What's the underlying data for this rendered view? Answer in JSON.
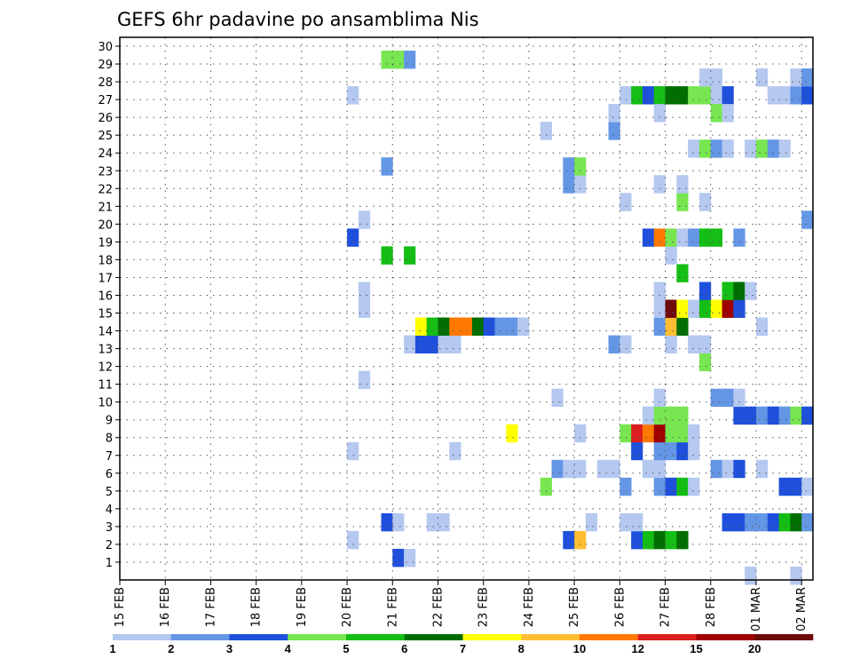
{
  "chart_data": {
    "type": "heatmap",
    "title": "GEFS 6hr padavine po ansamblima Nis",
    "xlabel": "",
    "ylabel": "",
    "x_tick_labels": [
      "15 FEB",
      "16 FEB",
      "17 FEB",
      "18 FEB",
      "19 FEB",
      "20 FEB",
      "21 FEB",
      "22 FEB",
      "23 FEB",
      "24 FEB",
      "25 FEB",
      "26 FEB",
      "27 FEB",
      "28 FEB",
      "01 MAR",
      "02 MAR"
    ],
    "y_tick_labels": [
      "1",
      "2",
      "3",
      "4",
      "5",
      "6",
      "7",
      "8",
      "9",
      "10",
      "11",
      "12",
      "13",
      "14",
      "15",
      "16",
      "17",
      "18",
      "19",
      "20",
      "21",
      "22",
      "23",
      "24",
      "25",
      "26",
      "27",
      "28",
      "29",
      "30"
    ],
    "x_unit": "6-hour step from 15 FEB 00Z",
    "ylim": [
      0,
      30
    ],
    "grid": true,
    "colorbar": {
      "labels": [
        "1",
        "2",
        "3",
        "4",
        "5",
        "6",
        "7",
        "8",
        "10",
        "12",
        "15",
        "20"
      ],
      "colors": [
        "#b4c8f0",
        "#6496e6",
        "#1e50dc",
        "#78e650",
        "#14be14",
        "#006e00",
        "#ffff00",
        "#ffbe32",
        "#ff7800",
        "#dc1e1e",
        "#a00000",
        "#6e0a0a"
      ]
    },
    "cells": [
      [
        24,
        1,
        3
      ],
      [
        25,
        1,
        1
      ],
      [
        27,
        3,
        1
      ],
      [
        28,
        3,
        1
      ],
      [
        20,
        2,
        1
      ],
      [
        39,
        2,
        3
      ],
      [
        40,
        2,
        8
      ],
      [
        45,
        2,
        3
      ],
      [
        46,
        2,
        5
      ],
      [
        47,
        2,
        6
      ],
      [
        48,
        2,
        5
      ],
      [
        49,
        2,
        6
      ],
      [
        23,
        3,
        3
      ],
      [
        24,
        3,
        1
      ],
      [
        41,
        3,
        1
      ],
      [
        44,
        3,
        1
      ],
      [
        45,
        3,
        1
      ],
      [
        53,
        3,
        3
      ],
      [
        54,
        3,
        3
      ],
      [
        55,
        3,
        2
      ],
      [
        56,
        3,
        2
      ],
      [
        57,
        3,
        3
      ],
      [
        58,
        3,
        5
      ],
      [
        59,
        3,
        6
      ],
      [
        60,
        3,
        2
      ],
      [
        37,
        5,
        4
      ],
      [
        44,
        5,
        2
      ],
      [
        47,
        5,
        2
      ],
      [
        48,
        5,
        3
      ],
      [
        49,
        5,
        5
      ],
      [
        50,
        5,
        1
      ],
      [
        58,
        5,
        3
      ],
      [
        59,
        5,
        3
      ],
      [
        60,
        5,
        1
      ],
      [
        38,
        6,
        2
      ],
      [
        39,
        6,
        1
      ],
      [
        40,
        6,
        1
      ],
      [
        42,
        6,
        1
      ],
      [
        43,
        6,
        1
      ],
      [
        46,
        6,
        1
      ],
      [
        47,
        6,
        1
      ],
      [
        52,
        6,
        2
      ],
      [
        53,
        6,
        1
      ],
      [
        54,
        6,
        3
      ],
      [
        56,
        6,
        1
      ],
      [
        20,
        7,
        1
      ],
      [
        29,
        7,
        1
      ],
      [
        45,
        7,
        3
      ],
      [
        47,
        7,
        2
      ],
      [
        48,
        7,
        2
      ],
      [
        49,
        7,
        3
      ],
      [
        50,
        7,
        1
      ],
      [
        34,
        8,
        7
      ],
      [
        40,
        8,
        1
      ],
      [
        44,
        8,
        4
      ],
      [
        45,
        8,
        10
      ],
      [
        46,
        8,
        9
      ],
      [
        47,
        8,
        11
      ],
      [
        48,
        8,
        4
      ],
      [
        49,
        8,
        4
      ],
      [
        50,
        8,
        1
      ],
      [
        46,
        9,
        1
      ],
      [
        47,
        9,
        4
      ],
      [
        48,
        9,
        4
      ],
      [
        49,
        9,
        4
      ],
      [
        54,
        9,
        3
      ],
      [
        55,
        9,
        3
      ],
      [
        56,
        9,
        2
      ],
      [
        57,
        9,
        3
      ],
      [
        58,
        9,
        2
      ],
      [
        59,
        9,
        4
      ],
      [
        60,
        9,
        3
      ],
      [
        38,
        10,
        1
      ],
      [
        47,
        10,
        1
      ],
      [
        52,
        10,
        2
      ],
      [
        53,
        10,
        2
      ],
      [
        54,
        10,
        1
      ],
      [
        21,
        11,
        1
      ],
      [
        51,
        12,
        4
      ],
      [
        25,
        13,
        1
      ],
      [
        26,
        13,
        3
      ],
      [
        27,
        13,
        3
      ],
      [
        28,
        13,
        1
      ],
      [
        29,
        13,
        1
      ],
      [
        43,
        13,
        2
      ],
      [
        44,
        13,
        1
      ],
      [
        48,
        13,
        1
      ],
      [
        50,
        13,
        1
      ],
      [
        51,
        13,
        1
      ],
      [
        26,
        14,
        7
      ],
      [
        27,
        14,
        5
      ],
      [
        28,
        14,
        6
      ],
      [
        29,
        14,
        9
      ],
      [
        30,
        14,
        9
      ],
      [
        31,
        14,
        6
      ],
      [
        32,
        14,
        3
      ],
      [
        33,
        14,
        2
      ],
      [
        34,
        14,
        2
      ],
      [
        35,
        14,
        1
      ],
      [
        47,
        14,
        2
      ],
      [
        48,
        14,
        8
      ],
      [
        49,
        14,
        6
      ],
      [
        56,
        14,
        1
      ],
      [
        21,
        15,
        1
      ],
      [
        47,
        15,
        1
      ],
      [
        48,
        15,
        12
      ],
      [
        49,
        15,
        7
      ],
      [
        50,
        15,
        1
      ],
      [
        51,
        15,
        5
      ],
      [
        52,
        15,
        7
      ],
      [
        53,
        15,
        11
      ],
      [
        54,
        15,
        3
      ],
      [
        21,
        16,
        1
      ],
      [
        47,
        16,
        1
      ],
      [
        51,
        16,
        3
      ],
      [
        53,
        16,
        5
      ],
      [
        54,
        16,
        6
      ],
      [
        55,
        16,
        1
      ],
      [
        49,
        17,
        5
      ],
      [
        23,
        18,
        5
      ],
      [
        25,
        18,
        5
      ],
      [
        48,
        18,
        1
      ],
      [
        20,
        19,
        3
      ],
      [
        46,
        19,
        3
      ],
      [
        47,
        19,
        9
      ],
      [
        48,
        19,
        4
      ],
      [
        49,
        19,
        1
      ],
      [
        50,
        19,
        2
      ],
      [
        51,
        19,
        5
      ],
      [
        52,
        19,
        5
      ],
      [
        54,
        19,
        2
      ],
      [
        21,
        20,
        1
      ],
      [
        60,
        20,
        2
      ],
      [
        44,
        21,
        1
      ],
      [
        49,
        21,
        4
      ],
      [
        51,
        21,
        1
      ],
      [
        39,
        22,
        2
      ],
      [
        40,
        22,
        1
      ],
      [
        47,
        22,
        1
      ],
      [
        49,
        22,
        1
      ],
      [
        23,
        23,
        2
      ],
      [
        39,
        23,
        2
      ],
      [
        40,
        23,
        4
      ],
      [
        55,
        24,
        1
      ],
      [
        56,
        24,
        4
      ],
      [
        57,
        24,
        2
      ],
      [
        58,
        24,
        1
      ],
      [
        50,
        24,
        1
      ],
      [
        51,
        24,
        4
      ],
      [
        52,
        24,
        2
      ],
      [
        53,
        24,
        1
      ],
      [
        37,
        25,
        1
      ],
      [
        43,
        25,
        2
      ],
      [
        43,
        26,
        1
      ],
      [
        20,
        27,
        1
      ],
      [
        44,
        27,
        1
      ],
      [
        45,
        27,
        5
      ],
      [
        46,
        27,
        3
      ],
      [
        47,
        27,
        5
      ],
      [
        48,
        27,
        6
      ],
      [
        49,
        27,
        6
      ],
      [
        50,
        27,
        4
      ],
      [
        51,
        27,
        4
      ],
      [
        52,
        27,
        1
      ],
      [
        53,
        27,
        3
      ],
      [
        57,
        27,
        1
      ],
      [
        58,
        27,
        1
      ],
      [
        59,
        27,
        2
      ],
      [
        60,
        27,
        3
      ],
      [
        47,
        26,
        1
      ],
      [
        52,
        26,
        4
      ],
      [
        53,
        26,
        1
      ],
      [
        51,
        28,
        1
      ],
      [
        52,
        28,
        1
      ],
      [
        56,
        28,
        1
      ],
      [
        59,
        28,
        1
      ],
      [
        60,
        28,
        2
      ],
      [
        23,
        29,
        4
      ],
      [
        24,
        29,
        4
      ],
      [
        25,
        29,
        2
      ],
      [
        55,
        0,
        1
      ],
      [
        59,
        0,
        1
      ]
    ]
  }
}
